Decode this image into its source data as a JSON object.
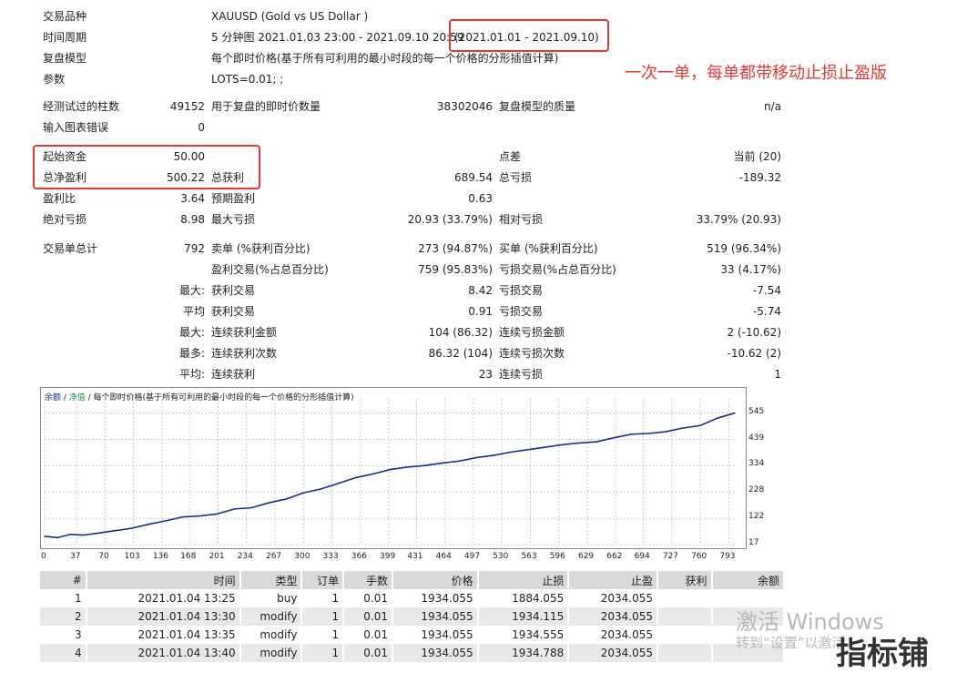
{
  "info": {
    "symbol_label": "交易品种",
    "symbol_value": "XAUUSD (Gold vs US Dollar )",
    "period_label": "时间周期",
    "period_value": "5 分钟图 2021.01.03 23:00 - 2021.09.10 20:59",
    "period_range": "(2021.01.01 - 2021.09.10)",
    "model_label": "复盘模型",
    "model_value": "每个即时价格(基于所有可利用的最小时段的每一个价格的分形插值计算)",
    "params_label": "参数",
    "params_value": "LOTS=0.01; ;"
  },
  "annotation": "一次一单，每单都带移动止损止盈版",
  "stats": {
    "bars_label": "经测试过的柱数",
    "bars_value": "49152",
    "ticks_label": "用于复盘的即时价数量",
    "ticks_value": "38302046",
    "quality_label": "复盘模型的质量",
    "quality_value": "n/a",
    "errors_label": "输入图表错误",
    "errors_value": "0",
    "deposit_label": "起始资金",
    "deposit_value": "50.00",
    "spread_label": "点差",
    "spread_value": "当前 (20)",
    "netprofit_label": "总净盈利",
    "netprofit_value": "500.22",
    "grossprofit_label": "总获利",
    "grossprofit_value": "689.54",
    "grossloss_label": "总亏损",
    "grossloss_value": "-189.32",
    "pf_label": "盈利比",
    "pf_value": "3.64",
    "expected_label": "预期盈利",
    "expected_value": "0.63",
    "absdd_label": "绝对亏损",
    "absdd_value": "8.98",
    "maxdd_label": "最大亏损",
    "maxdd_value": "20.93 (33.79%)",
    "reldd_label": "相对亏损",
    "reldd_value": "33.79% (20.93)",
    "total_label": "交易单总计",
    "total_value": "792",
    "short_label": "卖单 (%获利百分比)",
    "short_value": "273 (94.87%)",
    "long_label": "买单 (%获利百分比)",
    "long_value": "519 (96.34%)",
    "win_label": "盈利交易(%占总百分比)",
    "win_value": "759 (95.83%)",
    "loss_label": "亏损交易(%占总百分比)",
    "loss_value": "33 (4.17%)",
    "largest_label": "最大:",
    "largest_win_label": "获利交易",
    "largest_win_value": "8.42",
    "largest_loss_label": "亏损交易",
    "largest_loss_value": "-7.54",
    "avg_label": "平均",
    "avg_win_label": "获利交易",
    "avg_win_value": "0.91",
    "avg_loss_label": "亏损交易",
    "avg_loss_value": "-5.74",
    "max_label": "最大:",
    "max_cw_label": "连续获利金额",
    "max_cw_value": "104 (86.32)",
    "max_cl_label": "连续亏损金额",
    "max_cl_value": "2 (-10.62)",
    "most_label": "最多:",
    "most_cw_label": "连续获利次数",
    "most_cw_value": "86.32 (104)",
    "most_cl_label": "连续亏损次数",
    "most_cl_value": "-10.62 (2)",
    "avgc_label": "平均:",
    "avgc_w_label": "连续获利",
    "avgc_w_value": "23",
    "avgc_l_label": "连续亏损",
    "avgc_l_value": "1"
  },
  "chart_legend": {
    "balance": "余额",
    "sep": " / ",
    "equity": "净值",
    "text": " / 每个即时价格(基于所有可利用的最小时段的每一个价格的分形插值计算)"
  },
  "chart_data": {
    "type": "line",
    "ylim": [
      17,
      580
    ],
    "xlim": [
      0,
      800
    ],
    "y_ticks": [
      "545",
      "439",
      "334",
      "228",
      "122",
      "17"
    ],
    "x_ticks": [
      "0",
      "37",
      "70",
      "103",
      "136",
      "168",
      "201",
      "234",
      "267",
      "300",
      "333",
      "366",
      "399",
      "431",
      "464",
      "497",
      "530",
      "563",
      "596",
      "629",
      "662",
      "694",
      "727",
      "760",
      "793"
    ],
    "series": [
      {
        "color": "#1b2d8f",
        "x": [
          0,
          15,
          30,
          45,
          60,
          80,
          100,
          120,
          140,
          160,
          180,
          200,
          220,
          240,
          260,
          280,
          300,
          320,
          340,
          360,
          380,
          400,
          420,
          440,
          460,
          480,
          500,
          520,
          540,
          560,
          580,
          600,
          620,
          640,
          660,
          680,
          700,
          720,
          740,
          760,
          780,
          800
        ],
        "y": [
          50,
          45,
          58,
          55,
          62,
          72,
          82,
          98,
          112,
          128,
          132,
          140,
          160,
          165,
          185,
          200,
          225,
          240,
          262,
          285,
          300,
          318,
          328,
          334,
          344,
          352,
          366,
          375,
          388,
          398,
          408,
          418,
          425,
          430,
          446,
          460,
          463,
          470,
          485,
          495,
          525,
          545
        ]
      }
    ]
  },
  "table": {
    "headers": [
      "#",
      "时间",
      "类型",
      "订单",
      "手数",
      "价格",
      "止损",
      "止盈",
      "获利",
      "余额"
    ],
    "rows": [
      [
        "1",
        "2021.01.04 13:25",
        "buy",
        "1",
        "0.01",
        "1934.055",
        "1884.055",
        "2034.055",
        "",
        ""
      ],
      [
        "2",
        "2021.01.04 13:30",
        "modify",
        "1",
        "0.01",
        "1934.055",
        "1934.115",
        "2034.055",
        "",
        ""
      ],
      [
        "3",
        "2021.01.04 13:35",
        "modify",
        "1",
        "0.01",
        "1934.055",
        "1934.555",
        "2034.055",
        "",
        ""
      ],
      [
        "4",
        "2021.01.04 13:40",
        "modify",
        "1",
        "0.01",
        "1934.055",
        "1934.788",
        "2034.055",
        "",
        ""
      ]
    ]
  },
  "watermark": {
    "line1": "激活 Windows",
    "line2": "转到“设置”以激活",
    "brand": "指标铺"
  }
}
